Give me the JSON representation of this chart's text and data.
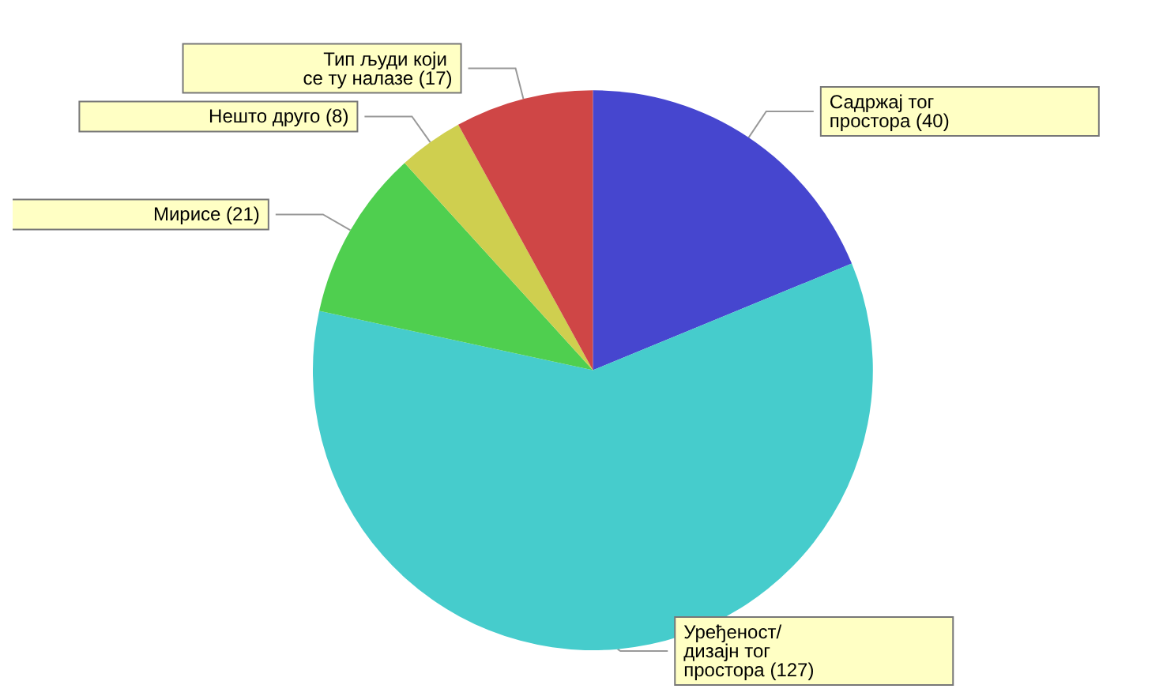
{
  "chart_data": {
    "type": "pie",
    "categories": [
      "Садржај тог простора (40)",
      "Уређеност/ дизајн тог простора (127)",
      "Мирисе (21)",
      "Нешто друго (8)",
      "Тип људи који се ту налазе (17)"
    ],
    "values": [
      40,
      127,
      21,
      8,
      17
    ],
    "colors": [
      "#4646cf",
      "#46cccc",
      "#4fcf4f",
      "#cfcf4f",
      "#cf4646"
    ],
    "legend": false
  }
}
